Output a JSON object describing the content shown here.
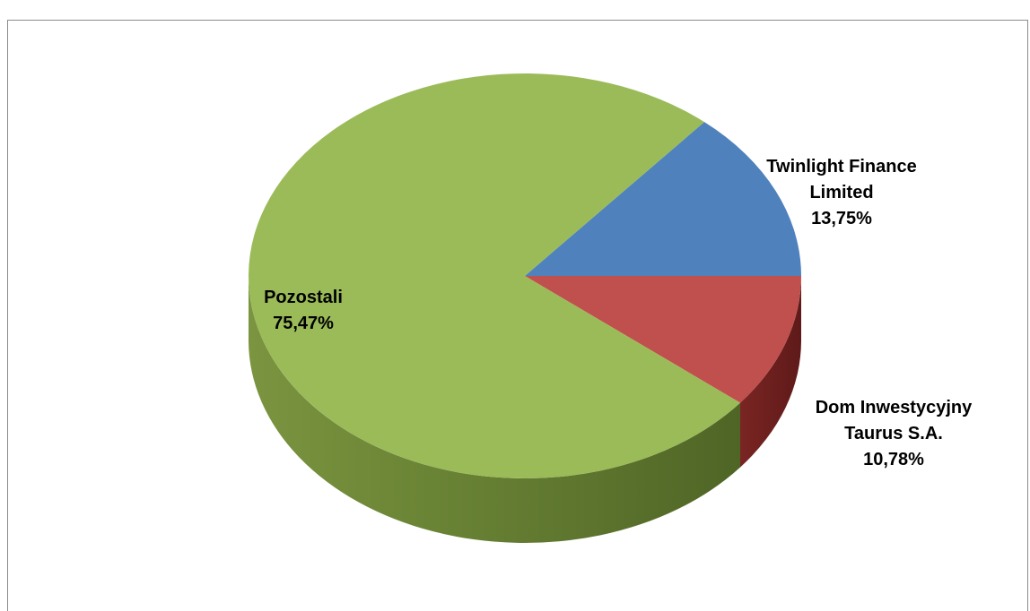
{
  "chart_data": {
    "type": "pie",
    "style": "3d",
    "slices": [
      {
        "name": "Twinlight Finance Limited",
        "name_lines": [
          "Twinlight Finance",
          "Limited"
        ],
        "value": 13.75,
        "value_label": "13,75%",
        "color": "#4F81BD"
      },
      {
        "name": "Dom Inwestycyjny Taurus S.A.",
        "name_lines": [
          "Dom Inwestycyjny",
          "Taurus S.A."
        ],
        "value": 10.78,
        "value_label": "10,78%",
        "color": "#C0504D"
      },
      {
        "name": "Pozostali",
        "name_lines": [
          "Pozostali"
        ],
        "value": 75.47,
        "value_label": "75,47%",
        "color": "#9BBB59"
      }
    ],
    "legend": "none"
  }
}
